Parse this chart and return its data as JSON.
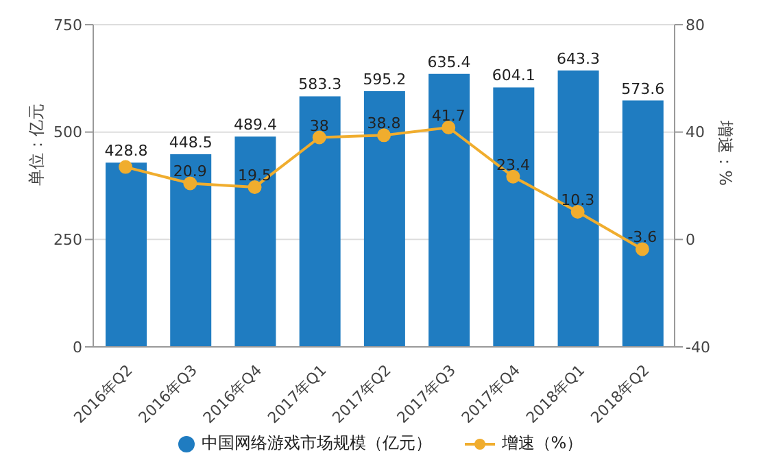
{
  "chart_data": {
    "type": "bar",
    "ylabel": "单位：亿元",
    "y2label": "增速：%",
    "categories": [
      "2016年Q2",
      "2016年Q3",
      "2016年Q4",
      "2017年Q1",
      "2017年Q2",
      "2017年Q3",
      "2017年Q4",
      "2018年Q1",
      "2018年Q2"
    ],
    "series": [
      {
        "name": "中国网络游戏市场规模（亿元）",
        "color": "#1f7cc1",
        "values": [
          428.8,
          448.5,
          489.4,
          583.3,
          595.2,
          635.4,
          604.1,
          643.3,
          573.6
        ],
        "value_labels": [
          "428.8",
          "448.5",
          "489.4",
          "583.3",
          "595.2",
          "635.4",
          "604.1",
          "643.3",
          "573.6"
        ]
      },
      {
        "name": "增速（%）",
        "type": "line",
        "axis": "y2",
        "color": "#f0ad2e",
        "values": [
          27,
          20.9,
          19.5,
          38,
          38.8,
          41.7,
          23.4,
          10.3,
          -3.6
        ],
        "value_labels": [
          null,
          "20.9",
          "19.5",
          "38",
          "38.8",
          "41.7",
          "23.4",
          "10.3",
          "-3.6"
        ]
      }
    ],
    "ylim": [
      0,
      750
    ],
    "yticks": [
      0,
      250,
      500,
      750
    ],
    "y2lim": [
      -40,
      80
    ],
    "y2ticks": [
      -40,
      0,
      40,
      80
    ],
    "grid": "y",
    "legend": "bottom",
    "marker": "circle"
  }
}
